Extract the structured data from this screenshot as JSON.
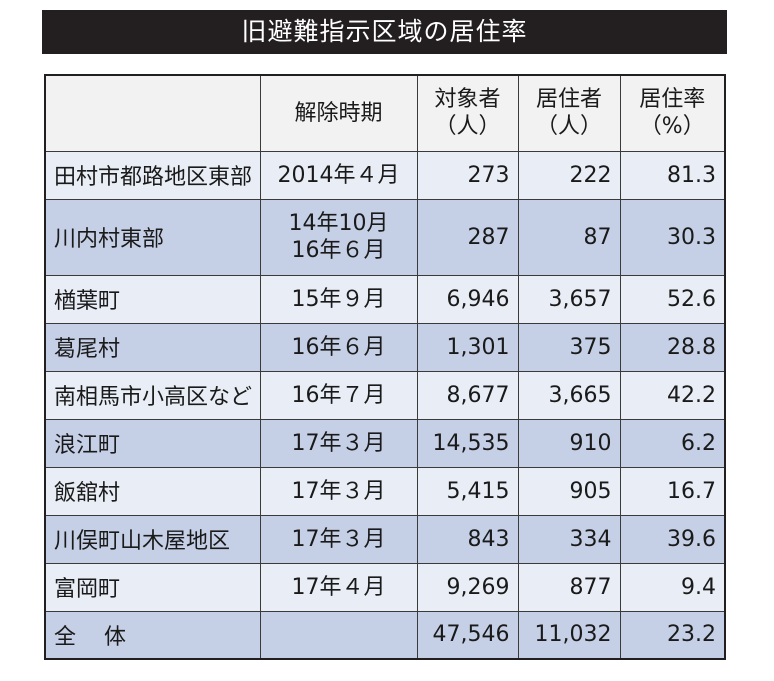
{
  "title": "旧避難指示区域の居住率",
  "headers": {
    "area": "",
    "period": "解除時期",
    "target": [
      "対象者",
      "（人）"
    ],
    "residents": [
      "居住者",
      "（人）"
    ],
    "rate": [
      "居住率",
      "（%）"
    ]
  },
  "rows": [
    {
      "area": "田村市都路地区東部",
      "period": [
        "2014年４月"
      ],
      "target": "273",
      "residents": "222",
      "rate": "81.3"
    },
    {
      "area": "川内村東部",
      "period": [
        "14年10月",
        "16年６月"
      ],
      "target": "287",
      "residents": "87",
      "rate": "30.3"
    },
    {
      "area": "楢葉町",
      "period": [
        "15年９月"
      ],
      "target": "6,946",
      "residents": "3,657",
      "rate": "52.6"
    },
    {
      "area": "葛尾村",
      "period": [
        "16年６月"
      ],
      "target": "1,301",
      "residents": "375",
      "rate": "28.8"
    },
    {
      "area": "南相馬市小高区など",
      "period": [
        "16年７月"
      ],
      "target": "8,677",
      "residents": "3,665",
      "rate": "42.2"
    },
    {
      "area": "浪江町",
      "period": [
        "17年３月"
      ],
      "target": "14,535",
      "residents": "910",
      "rate": "6.2"
    },
    {
      "area": "飯舘村",
      "period": [
        "17年３月"
      ],
      "target": "5,415",
      "residents": "905",
      "rate": "16.7"
    },
    {
      "area": "川俣町山木屋地区",
      "period": [
        "17年３月"
      ],
      "target": "843",
      "residents": "334",
      "rate": "39.6"
    },
    {
      "area": "富岡町",
      "period": [
        "17年４月"
      ],
      "target": "9,269",
      "residents": "877",
      "rate": "9.4"
    }
  ],
  "total": {
    "label": [
      "全",
      "体"
    ],
    "period": "",
    "target": "47,546",
    "residents": "11,032",
    "rate": "23.2"
  }
}
